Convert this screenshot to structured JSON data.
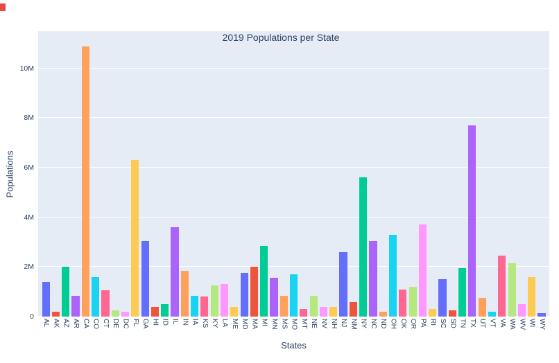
{
  "page": {
    "background": "#ffffff"
  },
  "decorations": {
    "corner_marker_color": "#ea4b41"
  },
  "chart_data": {
    "type": "bar",
    "title": "2019 Populations per State",
    "xlabel": "States",
    "ylabel": "Populations",
    "categories": [
      "AL",
      "AK",
      "AZ",
      "AR",
      "CA",
      "CO",
      "CT",
      "DE",
      "DC",
      "FL",
      "GA",
      "HI",
      "ID",
      "IL",
      "IN",
      "IA",
      "KS",
      "KY",
      "LA",
      "ME",
      "MD",
      "MA",
      "MI",
      "MN",
      "MS",
      "MO",
      "MT",
      "NE",
      "NV",
      "NH",
      "NJ",
      "NM",
      "NY",
      "NC",
      "ND",
      "OH",
      "OK",
      "OR",
      "PA",
      "RI",
      "SC",
      "SD",
      "TN",
      "TX",
      "UT",
      "VT",
      "VA",
      "WA",
      "WV",
      "WI",
      "WY"
    ],
    "values_millions": [
      1.4,
      0.2,
      2.0,
      0.85,
      10.9,
      1.6,
      1.05,
      0.25,
      0.2,
      6.3,
      3.05,
      0.4,
      0.5,
      3.6,
      1.85,
      0.85,
      0.8,
      1.25,
      1.3,
      0.4,
      1.75,
      2.0,
      2.85,
      1.55,
      0.85,
      1.7,
      0.3,
      0.85,
      0.4,
      0.4,
      2.6,
      0.6,
      5.6,
      3.05,
      0.2,
      3.3,
      1.1,
      1.2,
      3.7,
      0.3,
      1.5,
      0.25,
      1.95,
      7.7,
      0.75,
      0.2,
      2.45,
      2.15,
      0.5,
      1.6,
      0.15
    ],
    "ylim": [
      0,
      11.5
    ],
    "ytick_values": [
      0,
      2,
      4,
      6,
      8,
      10
    ],
    "ytick_labels": [
      "0",
      "2M",
      "4M",
      "6M",
      "8M",
      "10M"
    ],
    "palette": [
      "#636EFA",
      "#EF553B",
      "#00CC96",
      "#AB63FA",
      "#FFA15A",
      "#19D3F3",
      "#FF6692",
      "#B6E880",
      "#FF97FF",
      "#FECB52"
    ],
    "plot_bgcolor": "#E5ECF6",
    "grid_color": "#FFFFFF",
    "text_color": "#2A3F5F",
    "grid": true,
    "legend_position": "none"
  }
}
